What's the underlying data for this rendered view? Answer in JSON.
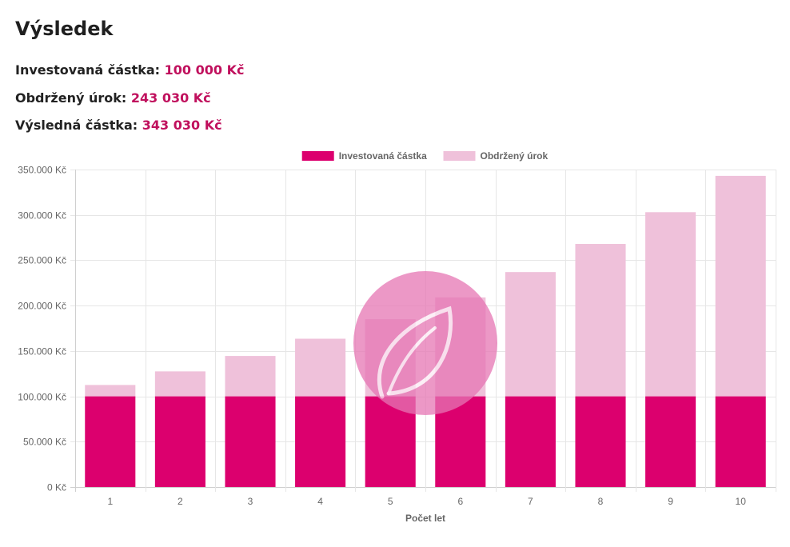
{
  "result": {
    "title": "Výsledek",
    "invested_label": "Investovaná částka:",
    "invested_value": "100 000 Kč",
    "interest_label": "Obdržený úrok:",
    "interest_value": "243 030 Kč",
    "final_label": "Výsledná částka:",
    "final_value": "343 030 Kč"
  },
  "colors": {
    "invested": "#dc006e",
    "interest": "#efc1da",
    "value_text": "#c0105d",
    "watermark": "#e676b4"
  },
  "watermark": {
    "icon": "leaf-logo-icon"
  },
  "chart_data": {
    "type": "bar",
    "stacked": true,
    "categories": [
      "1",
      "2",
      "3",
      "4",
      "5",
      "6",
      "7",
      "8",
      "9",
      "10"
    ],
    "series": [
      {
        "name": "Investovaná částka",
        "color": "#dc006e",
        "values": [
          100000,
          100000,
          100000,
          100000,
          100000,
          100000,
          100000,
          100000,
          100000,
          100000
        ]
      },
      {
        "name": "Obdržený úrok",
        "color": "#efc1da",
        "values": [
          12500,
          27500,
          44500,
          63500,
          85000,
          109000,
          137000,
          168000,
          203000,
          243030
        ]
      }
    ],
    "title": "",
    "xlabel": "Počet let",
    "ylabel": "",
    "ylim": [
      0,
      350000
    ],
    "yticks": [
      0,
      50000,
      100000,
      150000,
      200000,
      250000,
      300000,
      350000
    ],
    "ytick_labels": [
      "0 Kč",
      "50.000 Kč",
      "100.000 Kč",
      "150.000 Kč",
      "200.000 Kč",
      "250.000 Kč",
      "300.000 Kč",
      "350.000 Kč"
    ],
    "legend_position": "top-center",
    "grid": true
  }
}
